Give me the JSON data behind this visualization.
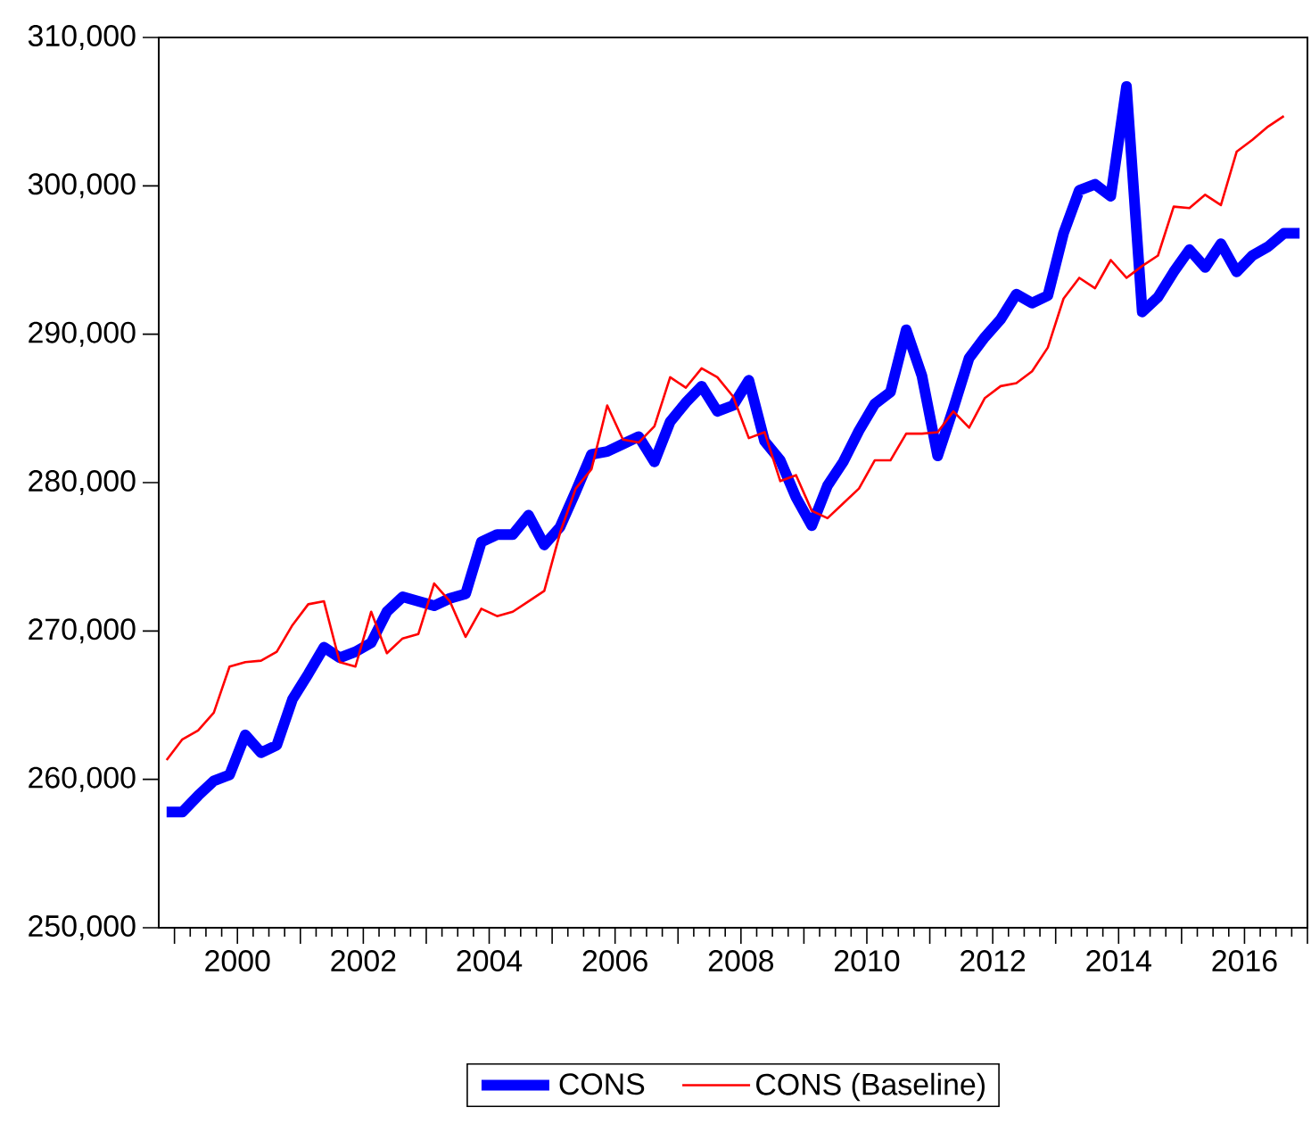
{
  "chart_data": {
    "type": "line",
    "x": [
      1998.875,
      1999.125,
      1999.375,
      1999.625,
      1999.875,
      2000.125,
      2000.375,
      2000.625,
      2000.875,
      2001.125,
      2001.375,
      2001.625,
      2001.875,
      2002.125,
      2002.375,
      2002.625,
      2002.875,
      2003.125,
      2003.375,
      2003.625,
      2003.875,
      2004.125,
      2004.375,
      2004.625,
      2004.875,
      2005.125,
      2005.375,
      2005.625,
      2005.875,
      2006.125,
      2006.375,
      2006.625,
      2006.875,
      2007.125,
      2007.375,
      2007.625,
      2007.875,
      2008.125,
      2008.375,
      2008.625,
      2008.875,
      2009.125,
      2009.375,
      2009.625,
      2009.875,
      2010.125,
      2010.375,
      2010.625,
      2010.875,
      2011.125,
      2011.375,
      2011.625,
      2011.875,
      2012.125,
      2012.375,
      2012.625,
      2012.875,
      2013.125,
      2013.375,
      2013.625,
      2013.875,
      2014.125,
      2014.375,
      2014.625,
      2014.875,
      2015.125,
      2015.375,
      2015.625,
      2015.875,
      2016.125,
      2016.375,
      2016.625,
      2016.875
    ],
    "series": [
      {
        "name": "CONS",
        "color": "#0000ff",
        "values": [
          257800,
          257800,
          258900,
          259900,
          260300,
          263000,
          261800,
          262300,
          265400,
          267100,
          268900,
          268200,
          268600,
          269200,
          271300,
          272300,
          272000,
          271700,
          272200,
          272500,
          276000,
          276500,
          276500,
          277800,
          275800,
          277000,
          279400,
          281900,
          282100,
          282600,
          283100,
          281400,
          284100,
          285400,
          286500,
          284800,
          285200,
          286900,
          282800,
          281500,
          279000,
          277100,
          279800,
          281400,
          283500,
          285300,
          286100,
          290300,
          287200,
          281800,
          285000,
          288400,
          289800,
          291000,
          292700,
          292100,
          292600,
          296800,
          299700,
          300100,
          299300,
          306700,
          291500,
          292500,
          294200,
          295700,
          294500,
          296100,
          294200,
          295300,
          295900,
          296800,
          296800
        ]
      },
      {
        "name": "CONS (Baseline)",
        "color": "#ff0000",
        "values": [
          261300,
          262700,
          263300,
          264500,
          267600,
          267900,
          268000,
          268600,
          270400,
          271800,
          272000,
          267900,
          267600,
          271300,
          268500,
          269500,
          269800,
          273200,
          272000,
          269600,
          271500,
          271000,
          271300,
          272000,
          272700,
          276600,
          279600,
          280900,
          285200,
          282900,
          282700,
          283800,
          287100,
          286400,
          287700,
          287100,
          285800,
          283000,
          283400,
          280100,
          280500,
          278100,
          277600,
          278600,
          279600,
          281500,
          281500,
          283300,
          283300,
          283400,
          284800,
          283700,
          285700,
          286500,
          286700,
          287500,
          289100,
          292400,
          293800,
          293100,
          295000,
          293800,
          294600,
          295300,
          298600,
          298500,
          299400,
          298700,
          302300,
          303100,
          304000,
          304700,
          null
        ]
      }
    ],
    "xlim": [
      1998.75,
      2017
    ],
    "xticks": [
      {
        "value": 1999,
        "label": null
      },
      2000,
      {
        "value": 2001,
        "label": null
      },
      2002,
      {
        "value": 2003,
        "label": null
      },
      2004,
      {
        "value": 2005,
        "label": null
      },
      2006,
      {
        "value": 2007,
        "label": null
      },
      2008,
      {
        "value": 2009,
        "label": null
      },
      2010,
      {
        "value": 2011,
        "label": null
      },
      2012,
      {
        "value": 2013,
        "label": null
      },
      2014,
      {
        "value": 2015,
        "label": null
      },
      2016,
      {
        "value": 2017,
        "label": null
      }
    ],
    "ylim": [
      250000,
      310000
    ],
    "yticks": [
      {
        "value": 250000,
        "label": "250,000"
      },
      {
        "value": 260000,
        "label": "260,000"
      },
      {
        "value": 270000,
        "label": "270,000"
      },
      {
        "value": 280000,
        "label": "280,000"
      },
      {
        "value": 290000,
        "label": "290,000"
      },
      {
        "value": 300000,
        "label": "300,000"
      },
      {
        "value": 310000,
        "label": "310,000"
      }
    ],
    "legend": "bottom"
  }
}
